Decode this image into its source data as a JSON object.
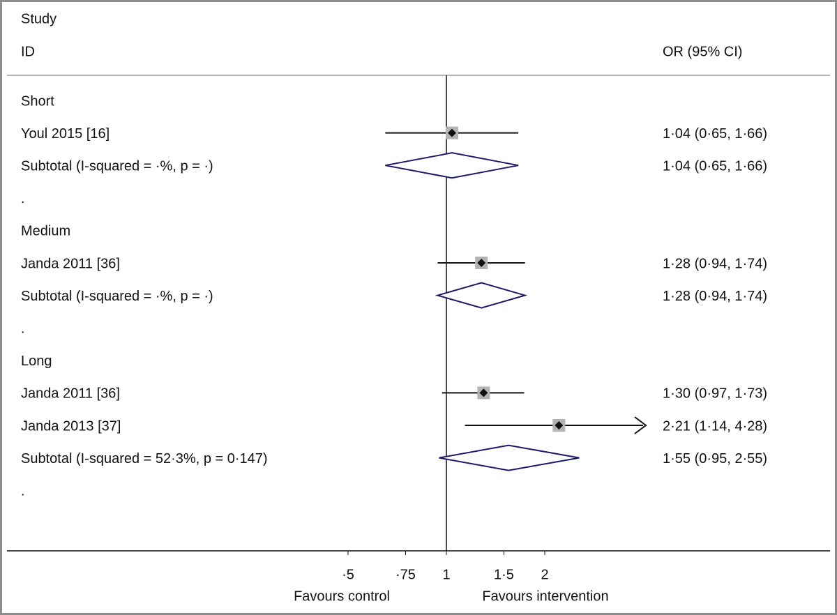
{
  "chart_data": {
    "type": "forest",
    "header": {
      "study": "Study",
      "id": "ID",
      "estimate": "OR (95% CI)"
    },
    "rows": [
      {
        "kind": "group",
        "label": "Short"
      },
      {
        "kind": "study",
        "label": "Youl 2015 [16]",
        "or": 1.04,
        "lo": 0.65,
        "hi": 1.66,
        "value_label": "1·04 (0·65, 1·66)"
      },
      {
        "kind": "subtotal",
        "label": "Subtotal  (I-squared = ·%, p = ·)",
        "or": 1.04,
        "lo": 0.65,
        "hi": 1.66,
        "value_label": "1·04 (0·65, 1·66)"
      },
      {
        "kind": "spacer",
        "label": "."
      },
      {
        "kind": "group",
        "label": "Medium"
      },
      {
        "kind": "study",
        "label": "Janda 2011 [36]",
        "or": 1.28,
        "lo": 0.94,
        "hi": 1.74,
        "value_label": "1·28 (0·94, 1·74)"
      },
      {
        "kind": "subtotal",
        "label": "Subtotal  (I-squared = ·%, p = ·)",
        "or": 1.28,
        "lo": 0.94,
        "hi": 1.74,
        "value_label": "1·28 (0·94, 1·74)"
      },
      {
        "kind": "spacer",
        "label": "."
      },
      {
        "kind": "group",
        "label": "Long"
      },
      {
        "kind": "study",
        "label": "Janda 2011 [36]",
        "or": 1.3,
        "lo": 0.97,
        "hi": 1.73,
        "value_label": "1·30 (0·97, 1·73)"
      },
      {
        "kind": "study",
        "label": "Janda 2013 [37]",
        "or": 2.21,
        "lo": 1.14,
        "hi": 4.28,
        "value_label": "2·21 (1·14, 4·28)"
      },
      {
        "kind": "subtotal",
        "label": "Subtotal  (I-squared = 52·3%, p = 0·147)",
        "or": 1.55,
        "lo": 0.95,
        "hi": 2.55,
        "value_label": "1·55 (0·95, 2·55)"
      },
      {
        "kind": "spacer",
        "label": "."
      }
    ],
    "log_scale": true,
    "xlim": [
      0.25,
      4
    ],
    "xticks": [
      {
        "value": 0.5,
        "label": "·5"
      },
      {
        "value": 0.75,
        "label": "·75"
      },
      1,
      {
        "value": 1.5,
        "label": "1·5"
      },
      2
    ],
    "reference_line": 1,
    "x_left_label": "Favours control",
    "x_right_label": "Favours intervention"
  }
}
